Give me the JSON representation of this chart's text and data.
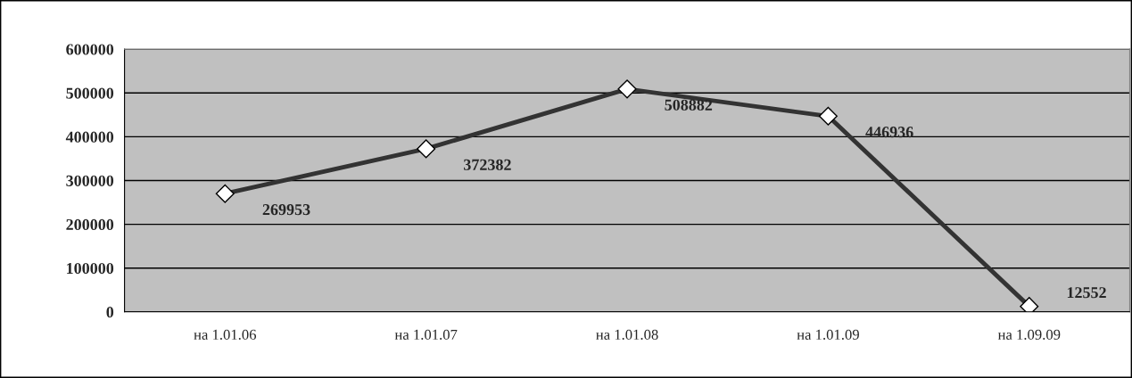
{
  "chart_data": {
    "type": "line",
    "categories": [
      "на 1.01.06",
      "на 1.01.07",
      "на 1.01.08",
      "на 1.01.09",
      "на 1.09.09"
    ],
    "series": [
      {
        "color": "#333333",
        "values": [
          269953,
          372382,
          508882,
          446936,
          12552
        ]
      }
    ],
    "ylim": [
      0,
      600000
    ],
    "yticks": [
      0,
      100000,
      200000,
      300000,
      400000,
      500000,
      600000
    ],
    "grid": "y",
    "marker": "diamond",
    "line_style": "solid",
    "data_labels": true,
    "legend": false
  }
}
